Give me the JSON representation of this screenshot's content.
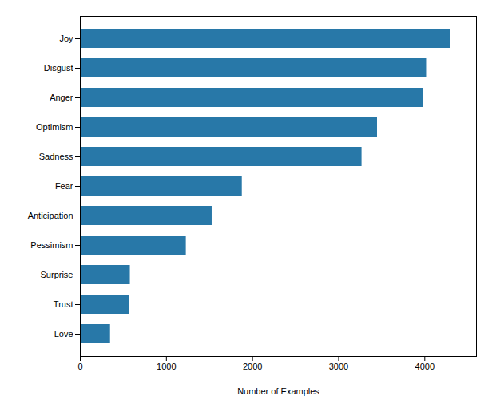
{
  "chart_data": {
    "type": "bar",
    "orientation": "horizontal",
    "categories": [
      "Joy",
      "Disgust",
      "Anger",
      "Optimism",
      "Sadness",
      "Fear",
      "Anticipation",
      "Pessimism",
      "Surprise",
      "Trust",
      "Love"
    ],
    "values": [
      4300,
      4020,
      3980,
      3450,
      3270,
      1880,
      1530,
      1230,
      580,
      570,
      350
    ],
    "color": "#2878a8",
    "xlabel": "Number of Examples",
    "xlim": [
      0,
      4600
    ],
    "xticks": [
      0,
      1000,
      2000,
      3000,
      4000
    ],
    "grid": false
  }
}
